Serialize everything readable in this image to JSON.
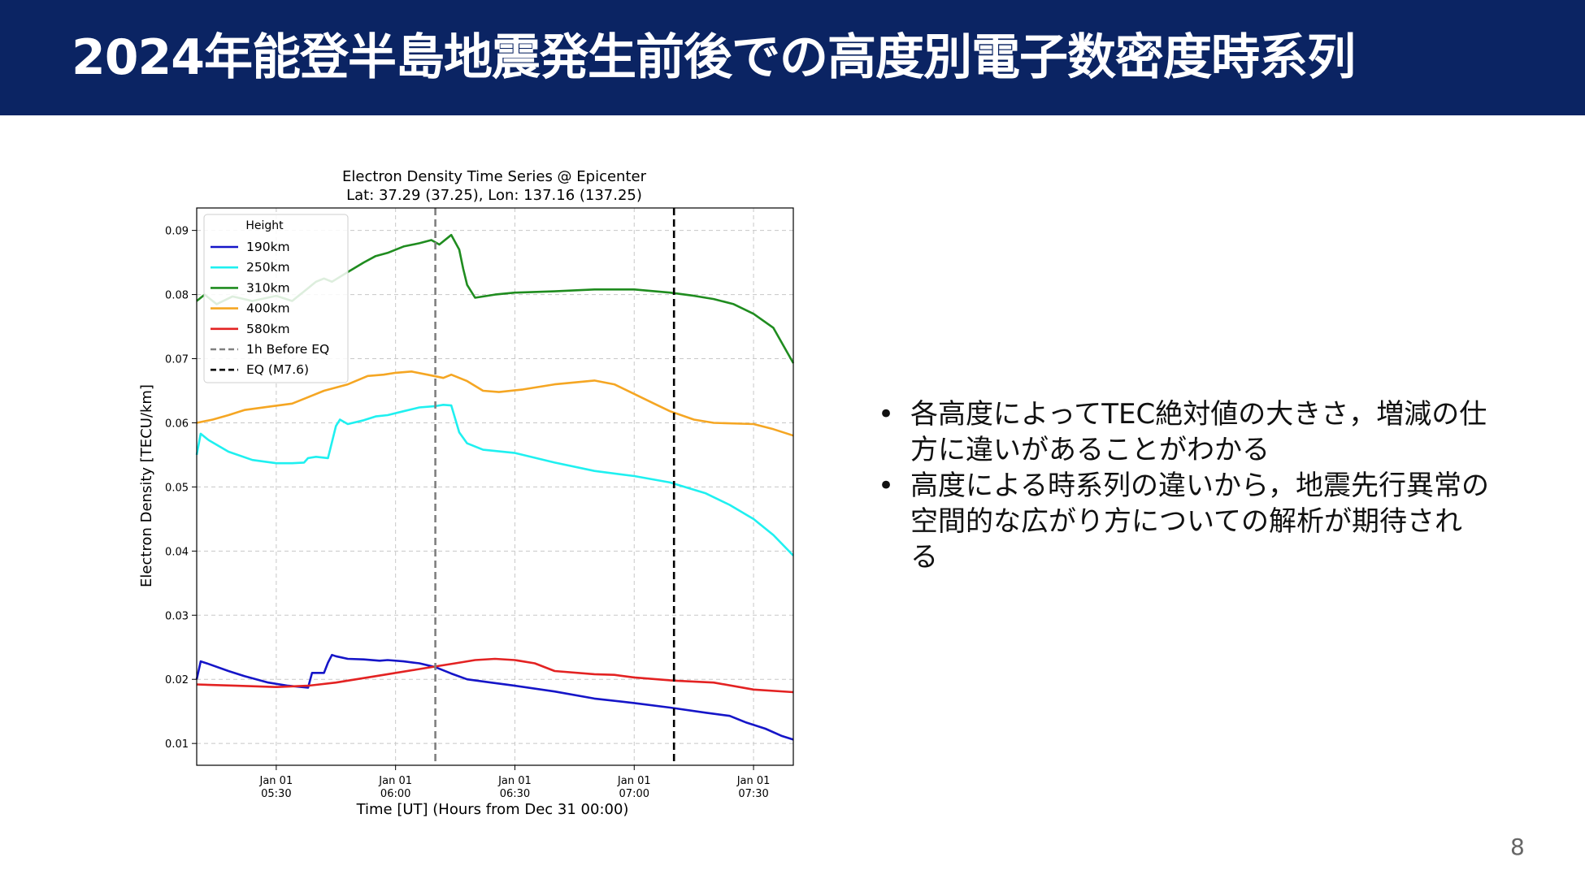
{
  "slide": {
    "title": "2024年能登半島地震発生前後での高度別電子数密度時系列",
    "page_number": "8",
    "bullets": [
      "各高度によってTEC絶対値の大きさ，増減の仕方に違いがあることがわかる",
      "高度による時系列の違いから，地震先行異常の空間的な広がり方についての解析が期待される"
    ],
    "header_color": "#0b2463"
  },
  "chart_data": {
    "type": "line",
    "title": "Electron Density Time Series @ Epicenter",
    "subtitle": "Lat: 37.29 (37.25), Lon: 137.16 (137.25)",
    "xlabel": "Time [UT] (Hours from Dec 31 00:00)",
    "ylabel": "Electron Density [TECU/km]",
    "x_unit": "UT time on Jan 01 (HH:MM)",
    "xlim": [
      "05:10",
      "07:40"
    ],
    "ylim": [
      0.0066,
      0.0935
    ],
    "yticks": [
      0.01,
      0.02,
      0.03,
      0.04,
      0.05,
      0.06,
      0.07,
      0.08,
      0.09
    ],
    "ytick_labels": [
      "0.01",
      "0.02",
      "0.03",
      "0.04",
      "0.05",
      "0.06",
      "0.07",
      "0.08",
      "0.09"
    ],
    "xticks": [
      {
        "x": "05:30",
        "label": [
          "Jan 01",
          "05:30"
        ]
      },
      {
        "x": "06:00",
        "label": [
          "Jan 01",
          "06:00"
        ]
      },
      {
        "x": "06:30",
        "label": [
          "Jan 01",
          "06:30"
        ]
      },
      {
        "x": "07:00",
        "label": [
          "Jan 01",
          "07:00"
        ]
      },
      {
        "x": "07:30",
        "label": [
          "Jan 01",
          "07:30"
        ]
      }
    ],
    "grid": true,
    "legend": {
      "title": "Height",
      "placement": "upper-left"
    },
    "series": [
      {
        "name": "190km",
        "color": "#1515c8",
        "x": [
          "05:10",
          "05:11",
          "05:13",
          "05:18",
          "05:22",
          "05:28",
          "05:33",
          "05:38",
          "05:39",
          "05:41",
          "05:42",
          "05:43",
          "05:44",
          "05:45",
          "05:48",
          "05:52",
          "05:56",
          "05:58",
          "06:02",
          "06:06",
          "06:10",
          "06:14",
          "06:18",
          "06:24",
          "06:30",
          "06:40",
          "06:50",
          "07:00",
          "07:09",
          "07:18",
          "07:24",
          "07:28",
          "07:33",
          "07:37",
          "07:40"
        ],
        "y": [
          0.02,
          0.0228,
          0.0224,
          0.0213,
          0.0205,
          0.0195,
          0.019,
          0.0187,
          0.021,
          0.021,
          0.021,
          0.0226,
          0.0238,
          0.0236,
          0.0232,
          0.0231,
          0.0229,
          0.023,
          0.0228,
          0.0225,
          0.0219,
          0.0209,
          0.02,
          0.0195,
          0.019,
          0.0181,
          0.017,
          0.0163,
          0.0156,
          0.0148,
          0.0143,
          0.0133,
          0.0123,
          0.0112,
          0.0106
        ]
      },
      {
        "name": "250km",
        "color": "#1ff0f0",
        "x": [
          "05:10",
          "05:11",
          "05:13",
          "05:18",
          "05:24",
          "05:30",
          "05:34",
          "05:37",
          "05:38",
          "05:40",
          "05:43",
          "05:45",
          "05:46",
          "05:48",
          "05:52",
          "05:55",
          "05:58",
          "06:02",
          "06:06",
          "06:10",
          "06:12",
          "06:14",
          "06:16",
          "06:18",
          "06:22",
          "06:30",
          "06:40",
          "06:50",
          "07:00",
          "07:09",
          "07:18",
          "07:24",
          "07:30",
          "07:35",
          "07:40"
        ],
        "y": [
          0.055,
          0.0583,
          0.0573,
          0.0555,
          0.0542,
          0.0537,
          0.0537,
          0.0538,
          0.0545,
          0.0547,
          0.0545,
          0.0595,
          0.0605,
          0.0598,
          0.0604,
          0.061,
          0.0612,
          0.0618,
          0.0624,
          0.0626,
          0.0628,
          0.0627,
          0.0585,
          0.0568,
          0.0558,
          0.0553,
          0.0538,
          0.0525,
          0.0517,
          0.0507,
          0.049,
          0.0472,
          0.045,
          0.0425,
          0.0393
        ]
      },
      {
        "name": "310km",
        "color": "#1f8c1f",
        "x": [
          "05:10",
          "05:12",
          "05:15",
          "05:19",
          "05:24",
          "05:30",
          "05:34",
          "05:36",
          "05:38",
          "05:40",
          "05:42",
          "05:44",
          "05:48",
          "05:52",
          "05:55",
          "05:58",
          "06:02",
          "06:06",
          "06:09",
          "06:11",
          "06:14",
          "06:16",
          "06:17",
          "06:18",
          "06:20",
          "06:25",
          "06:30",
          "06:40",
          "06:50",
          "07:00",
          "07:09",
          "07:15",
          "07:20",
          "07:25",
          "07:30",
          "07:35",
          "07:40"
        ],
        "y": [
          0.079,
          0.08,
          0.0785,
          0.0797,
          0.079,
          0.0798,
          0.079,
          0.08,
          0.081,
          0.082,
          0.0825,
          0.082,
          0.0835,
          0.085,
          0.086,
          0.0865,
          0.0875,
          0.088,
          0.0885,
          0.0878,
          0.0893,
          0.087,
          0.084,
          0.0815,
          0.0795,
          0.08,
          0.0803,
          0.0805,
          0.0808,
          0.0808,
          0.0803,
          0.0798,
          0.0793,
          0.0785,
          0.077,
          0.0748,
          0.0693
        ]
      },
      {
        "name": "400km",
        "color": "#f5a623",
        "x": [
          "05:10",
          "05:14",
          "05:18",
          "05:22",
          "05:28",
          "05:34",
          "05:38",
          "05:42",
          "05:48",
          "05:53",
          "05:57",
          "06:00",
          "06:04",
          "06:08",
          "06:12",
          "06:14",
          "06:18",
          "06:22",
          "06:26",
          "06:32",
          "06:40",
          "06:50",
          "06:55",
          "07:00",
          "07:05",
          "07:09",
          "07:15",
          "07:20",
          "07:30",
          "07:35",
          "07:40"
        ],
        "y": [
          0.06,
          0.0605,
          0.0612,
          0.062,
          0.0625,
          0.063,
          0.064,
          0.065,
          0.066,
          0.0673,
          0.0675,
          0.0678,
          0.068,
          0.0675,
          0.067,
          0.0675,
          0.0665,
          0.065,
          0.0648,
          0.0652,
          0.066,
          0.0666,
          0.066,
          0.0645,
          0.063,
          0.0618,
          0.0605,
          0.06,
          0.0598,
          0.059,
          0.058
        ]
      },
      {
        "name": "580km",
        "color": "#e32222",
        "x": [
          "05:10",
          "05:20",
          "05:30",
          "05:38",
          "05:45",
          "05:55",
          "06:05",
          "06:10",
          "06:15",
          "06:20",
          "06:25",
          "06:30",
          "06:35",
          "06:40",
          "06:50",
          "06:55",
          "07:00",
          "07:10",
          "07:20",
          "07:30",
          "07:40"
        ],
        "y": [
          0.0192,
          0.019,
          0.0188,
          0.019,
          0.0195,
          0.0205,
          0.0215,
          0.022,
          0.0225,
          0.023,
          0.0232,
          0.023,
          0.0225,
          0.0213,
          0.0208,
          0.0207,
          0.0203,
          0.0198,
          0.0195,
          0.0184,
          0.018
        ]
      }
    ],
    "vlines": [
      {
        "name": "1h Before EQ",
        "x": "06:10",
        "color": "#808080",
        "style": "dashed"
      },
      {
        "name": "EQ (M7.6)",
        "x": "07:10",
        "color": "#000000",
        "style": "dashed"
      }
    ]
  }
}
